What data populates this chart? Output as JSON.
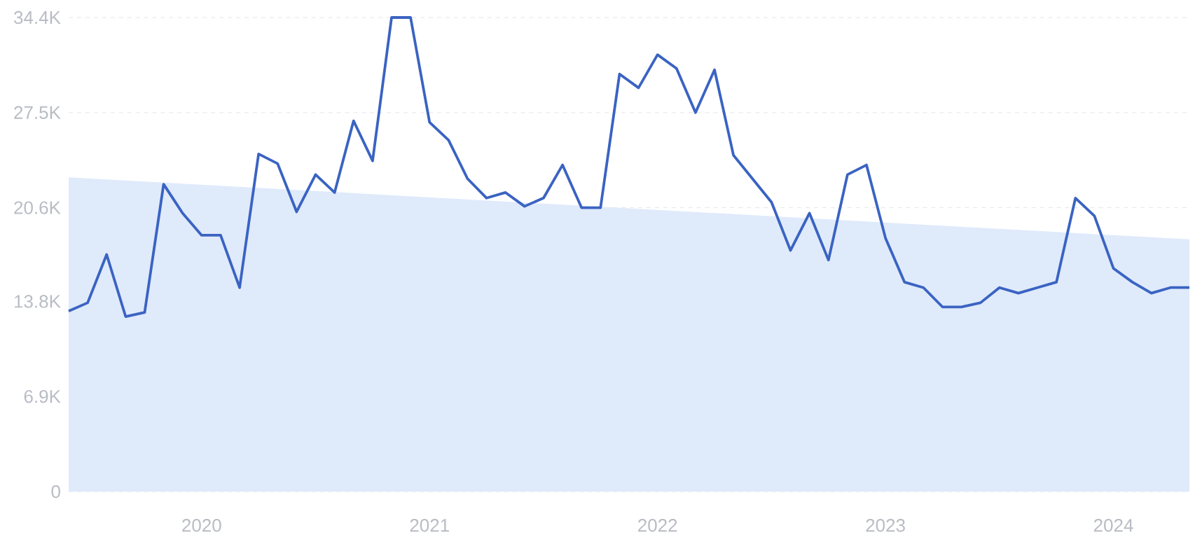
{
  "chart_data": {
    "type": "line",
    "x": [
      "2019-06",
      "2019-07",
      "2019-08",
      "2019-09",
      "2019-10",
      "2019-11",
      "2019-12",
      "2020-01",
      "2020-02",
      "2020-03",
      "2020-04",
      "2020-05",
      "2020-06",
      "2020-07",
      "2020-08",
      "2020-09",
      "2020-10",
      "2020-11",
      "2020-12",
      "2021-01",
      "2021-02",
      "2021-03",
      "2021-04",
      "2021-05",
      "2021-06",
      "2021-07",
      "2021-08",
      "2021-09",
      "2021-10",
      "2021-11",
      "2021-12",
      "2022-01",
      "2022-02",
      "2022-03",
      "2022-04",
      "2022-05",
      "2022-06",
      "2022-07",
      "2022-08",
      "2022-09",
      "2022-10",
      "2022-11",
      "2022-12",
      "2023-01",
      "2023-02",
      "2023-03",
      "2023-04",
      "2023-05",
      "2023-06",
      "2023-07",
      "2023-08",
      "2023-09",
      "2023-10",
      "2023-11",
      "2023-12",
      "2024-01",
      "2024-02",
      "2024-03",
      "2024-04",
      "2024-05"
    ],
    "series": [
      {
        "type": "area",
        "color": "#dfeafb",
        "x": [
          "2019-06",
          "2024-05"
        ],
        "values": [
          22800,
          18300
        ]
      },
      {
        "color": "#3a63c2",
        "values": [
          13100,
          13700,
          17200,
          12700,
          13000,
          22300,
          20200,
          18600,
          18600,
          14800,
          24500,
          23800,
          20300,
          23000,
          21700,
          26900,
          24000,
          34400,
          34400,
          26800,
          25500,
          22700,
          21300,
          21700,
          20700,
          21300,
          23700,
          20600,
          20600,
          30300,
          29300,
          31700,
          30700,
          27500,
          30600,
          24400,
          22700,
          21000,
          17500,
          20200,
          16800,
          23000,
          23700,
          18400,
          15200,
          14800,
          13400,
          13400,
          13700,
          14800,
          14400,
          14800,
          15200,
          21300,
          20000,
          16200,
          15200,
          14400,
          14800,
          14800
        ]
      }
    ],
    "xlim": [
      "2019-06",
      "2024-05"
    ],
    "xticks": [
      {
        "value": "2020-01",
        "label": "2020"
      },
      {
        "value": "2021-01",
        "label": "2021"
      },
      {
        "value": "2022-01",
        "label": "2022"
      },
      {
        "value": "2023-01",
        "label": "2023"
      },
      {
        "value": "2024-01",
        "label": "2024"
      }
    ],
    "ylim": [
      0,
      34400
    ],
    "yticks": [
      0,
      {
        "value": 6900,
        "label": "6.9K"
      },
      {
        "value": 13800,
        "label": "13.8K"
      },
      {
        "value": 20600,
        "label": "20.6K"
      },
      {
        "value": 27500,
        "label": "27.5K"
      },
      {
        "value": 34400,
        "label": "34.4K"
      }
    ],
    "grid": "y",
    "marker": "none",
    "line_style": "solid"
  }
}
